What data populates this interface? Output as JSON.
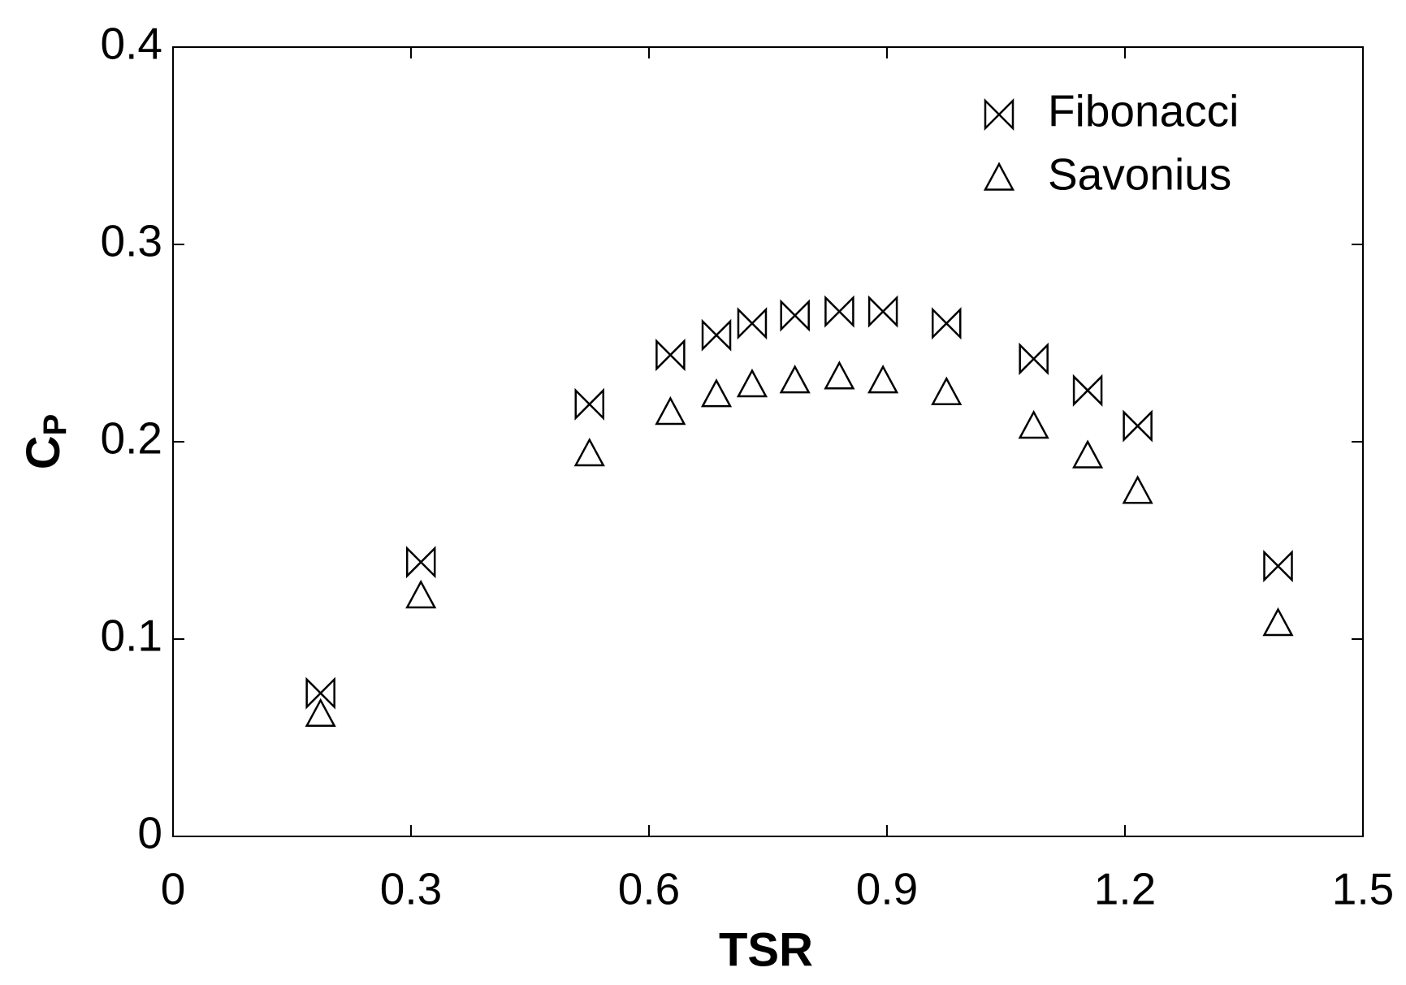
{
  "chart_data": {
    "type": "scatter",
    "xlabel": "TSR",
    "ylabel": {
      "text": "C",
      "subscript": "P"
    },
    "x": [
      0.186,
      0.3125,
      0.525,
      0.627,
      0.685,
      0.73,
      0.784,
      0.84,
      0.895,
      0.975,
      1.085,
      1.153,
      1.216,
      1.393
    ],
    "series": [
      {
        "name": "Fibonacci",
        "marker": "bowtie",
        "color": "#000000",
        "values": [
          0.0726,
          0.139,
          0.219,
          0.244,
          0.254,
          0.26,
          0.264,
          0.266,
          0.266,
          0.26,
          0.242,
          0.226,
          0.208,
          0.137
        ]
      },
      {
        "name": "Savonius",
        "marker": "triangle",
        "color": "#000000",
        "values": [
          0.062,
          0.122,
          0.194,
          0.215,
          0.224,
          0.229,
          0.231,
          0.233,
          0.231,
          0.225,
          0.208,
          0.193,
          0.175,
          0.108
        ]
      }
    ],
    "xlim": [
      0,
      1.5
    ],
    "xticks": [
      0,
      0.3,
      0.6,
      0.9,
      1.2,
      1.5
    ],
    "ylim": [
      0,
      0.4
    ],
    "yticks": [
      0,
      0.1,
      0.2,
      0.3,
      0.4
    ],
    "grid": false,
    "legend": "upper right"
  }
}
